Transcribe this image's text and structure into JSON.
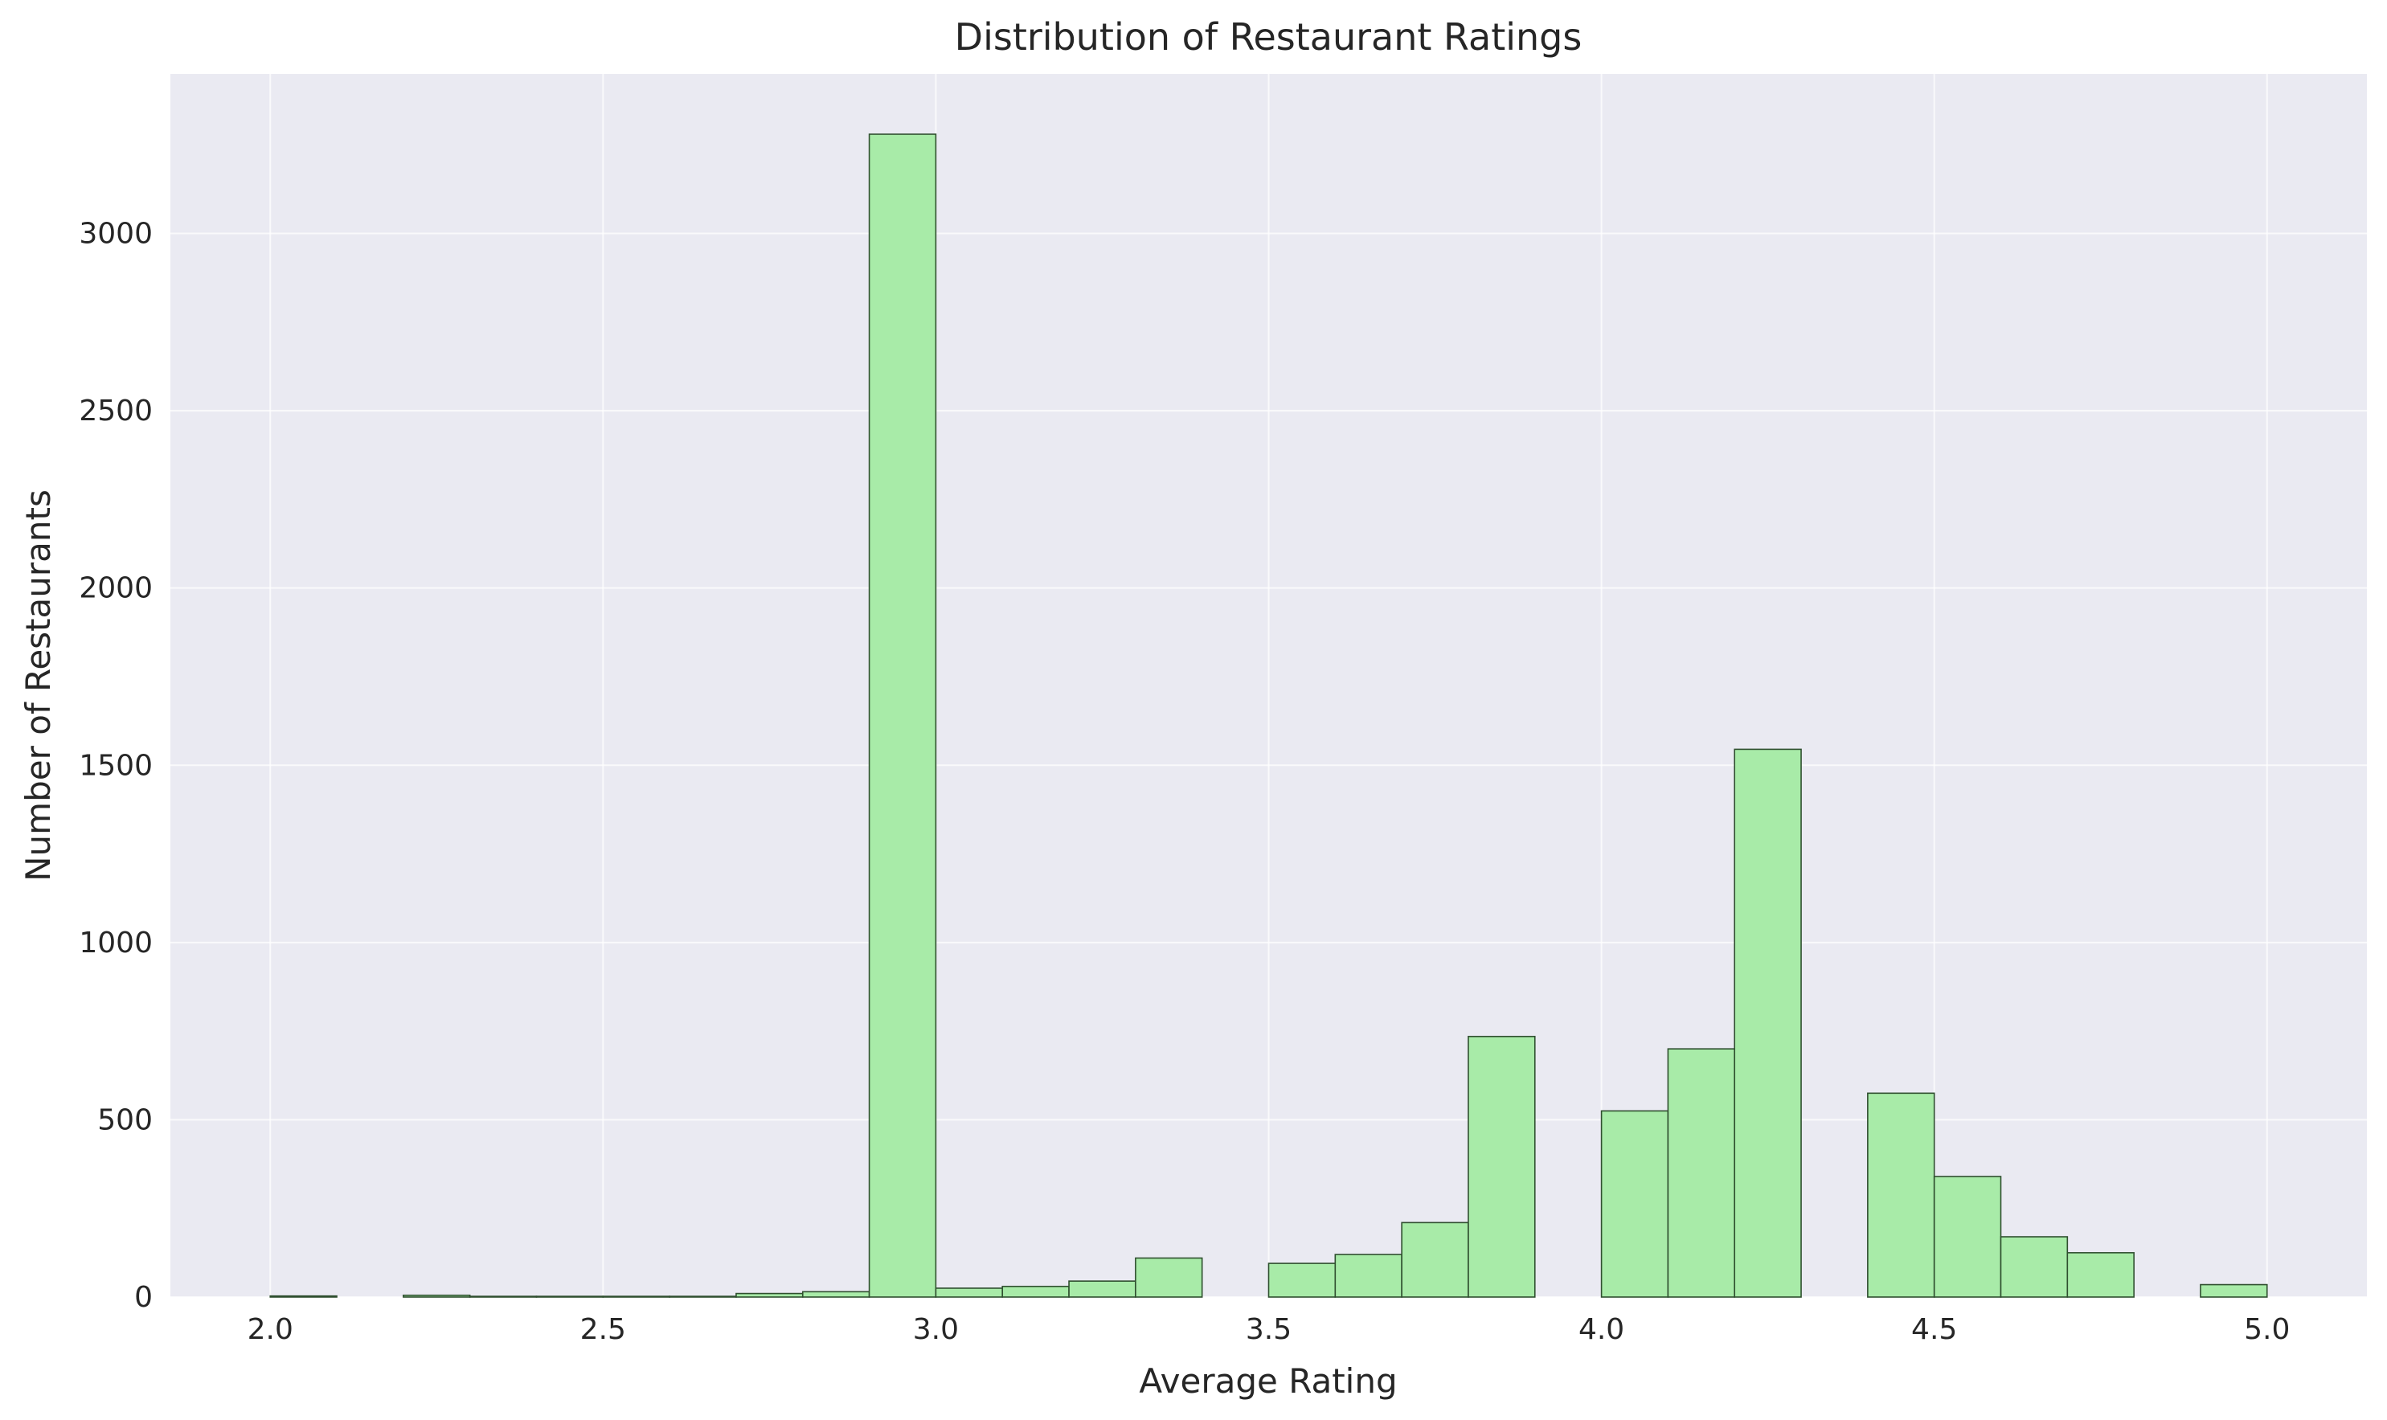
{
  "chart_data": {
    "type": "bar",
    "title": "Distribution of Restaurant Ratings",
    "xlabel": "Average Rating",
    "ylabel": "Number of Restaurants",
    "xlim": [
      1.85,
      5.15
    ],
    "ylim": [
      0,
      3450
    ],
    "xticks": [
      2.0,
      2.5,
      3.0,
      3.5,
      4.0,
      4.5,
      5.0
    ],
    "xtick_labels": [
      "2.0",
      "2.5",
      "3.0",
      "3.5",
      "4.0",
      "4.5",
      "5.0"
    ],
    "yticks": [
      0,
      500,
      1000,
      1500,
      2000,
      2500,
      3000
    ],
    "ytick_labels": [
      "0",
      "500",
      "1000",
      "1500",
      "2000",
      "2500",
      "3000"
    ],
    "bin_width": 0.1,
    "bin_starts": [
      2.0,
      2.1,
      2.2,
      2.3,
      2.4,
      2.5,
      2.6,
      2.7,
      2.8,
      2.9,
      3.0,
      3.1,
      3.2,
      3.3,
      3.4,
      3.5,
      3.6,
      3.7,
      3.8,
      3.9,
      4.0,
      4.1,
      4.2,
      4.3,
      4.4,
      4.5,
      4.6,
      4.7,
      4.8,
      4.9
    ],
    "values": [
      3,
      0,
      5,
      2,
      2,
      2,
      2,
      10,
      15,
      3280,
      25,
      30,
      45,
      110,
      0,
      95,
      120,
      210,
      735,
      0,
      525,
      700,
      1545,
      0,
      575,
      340,
      170,
      125,
      0,
      35
    ],
    "bar_color": "#a8eba8",
    "bar_edge_color": "#2f4f2f",
    "background_color": "#eaeaf2",
    "grid": true,
    "legend": "none"
  }
}
